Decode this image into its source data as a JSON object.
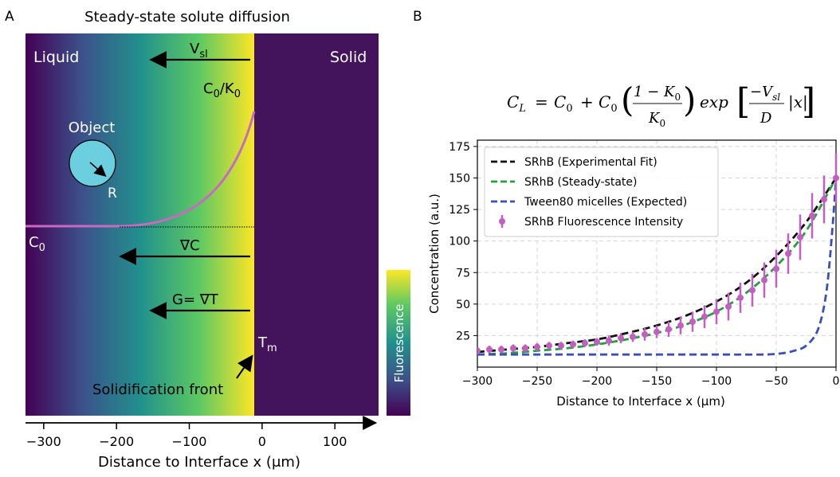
{
  "panel_a": {
    "letter": "A",
    "title": "Steady-state solute diffusion",
    "labels": {
      "liquid": "Liquid",
      "solid": "Solid",
      "vsl": "V",
      "vsl_sub": "sl",
      "c0k0_a": "C",
      "c0k0_sub": "0",
      "c0k0_b": "/K",
      "c0k0_sub2": "0",
      "object": "Object",
      "radius": "R",
      "c0": "C",
      "c0_sub": "0",
      "grad_c": "∇C",
      "grad_t": "G= ∇T",
      "tm": "T",
      "tm_sub": "m",
      "front": "Solidification front",
      "colorbar": "Fluorescence"
    },
    "colors": {
      "gradient": [
        "#440154",
        "#3b528b",
        "#21908d",
        "#5dc963",
        "#fde725"
      ],
      "solid": "#43145c",
      "curve": "#c86ac0",
      "object": "#6ccfe0"
    },
    "axis": {
      "xlabel": "Distance to Interface x (μm)",
      "ticks": [
        -300,
        -200,
        -100,
        0,
        100
      ],
      "xlim": [
        -325,
        160
      ]
    }
  },
  "panel_b": {
    "letter": "B",
    "equation": {
      "lhs": "C",
      "lhs_sub": "L",
      "eq": "=",
      "t1": "C",
      "t1_sub": "0",
      "plus": "+",
      "t2": "C",
      "t2_sub": "0",
      "num": "1 − K",
      "num_sub": "0",
      "den": "K",
      "den_sub": "0",
      "exp": "exp",
      "num2": "−V",
      "num2_sub": "sl",
      "den2": "D",
      "absx": "|x|"
    }
  },
  "chart_data": {
    "type": "line",
    "xlabel": "Distance to Interface x (μm)",
    "ylabel": "Concentration (a.u.)",
    "xlim": [
      -300,
      0
    ],
    "ylim": [
      0,
      180
    ],
    "xticks": [
      -300,
      -250,
      -200,
      -150,
      -100,
      -50,
      0
    ],
    "yticks": [
      25,
      50,
      75,
      100,
      125,
      150,
      175
    ],
    "grid": true,
    "legend_position": "top-left",
    "series": [
      {
        "name": "SRhB (Experimental Fit)",
        "style": "dashed",
        "color": "#111111",
        "x": [
          -300,
          -275,
          -250,
          -225,
          -200,
          -175,
          -150,
          -125,
          -100,
          -75,
          -50,
          -25,
          0
        ],
        "y": [
          12,
          14,
          16,
          19,
          22,
          27,
          33,
          41,
          52,
          67,
          88,
          115,
          150
        ]
      },
      {
        "name": "SRhB (Steady-state)",
        "style": "dashed",
        "color": "#22a03c",
        "x": [
          -300,
          -275,
          -250,
          -225,
          -200,
          -175,
          -150,
          -125,
          -100,
          -75,
          -50,
          -25,
          0
        ],
        "y": [
          10,
          11,
          13,
          15,
          18,
          22,
          27,
          34,
          44,
          59,
          80,
          108,
          150
        ]
      },
      {
        "name": "Tween80 micelles (Expected)",
        "style": "dashed",
        "color": "#3a4fb8",
        "x": [
          -300,
          -250,
          -200,
          -150,
          -100,
          -60,
          -45,
          -35,
          -25,
          -15,
          -8,
          -3,
          0
        ],
        "y": [
          10,
          10,
          10,
          10,
          10,
          10,
          11,
          13,
          17,
          30,
          60,
          110,
          150
        ]
      },
      {
        "name": "SRhB Fluorescence Intensity",
        "style": "errorbar",
        "color": "#c25fc0",
        "x": [
          -300,
          -290,
          -280,
          -270,
          -260,
          -250,
          -240,
          -230,
          -220,
          -210,
          -200,
          -190,
          -180,
          -170,
          -160,
          -150,
          -140,
          -130,
          -120,
          -110,
          -100,
          -90,
          -80,
          -70,
          -60,
          -50,
          -40,
          -30,
          -20,
          -10,
          0
        ],
        "y": [
          13,
          14,
          14,
          15,
          15,
          16,
          17,
          17,
          18,
          19,
          20,
          21,
          23,
          24,
          26,
          28,
          30,
          33,
          36,
          40,
          44,
          48,
          55,
          61,
          69,
          78,
          90,
          103,
          120,
          133,
          150
        ],
        "err": [
          3,
          3,
          3,
          3,
          3,
          3,
          3,
          3,
          3,
          3,
          3,
          4,
          4,
          4,
          5,
          5,
          6,
          7,
          8,
          9,
          10,
          11,
          12,
          13,
          14,
          15,
          16,
          18,
          18,
          19,
          20
        ]
      }
    ]
  }
}
